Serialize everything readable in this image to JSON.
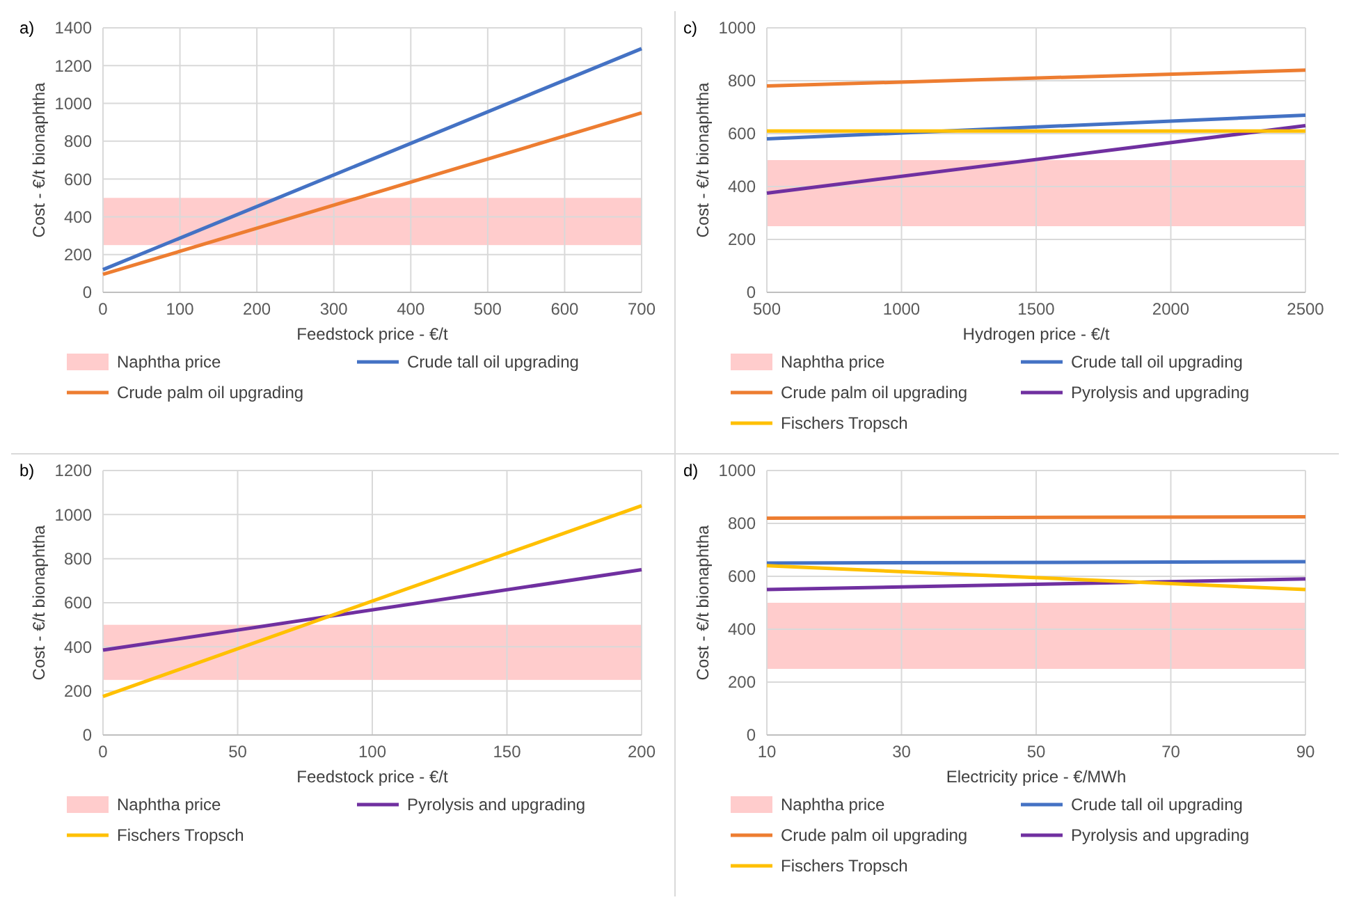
{
  "chart_data": [
    {
      "type": "line",
      "annotations": [
        "a)"
      ],
      "xlabel": "Feedstock price - €/t",
      "ylabel": "Cost - €/t bionaphtha",
      "xlim": [
        0,
        700
      ],
      "xticks": [
        0,
        100,
        200,
        300,
        400,
        500,
        600,
        700
      ],
      "ylim": [
        0,
        1400
      ],
      "yticks": [
        0,
        200,
        400,
        600,
        800,
        1000,
        1200,
        1400
      ],
      "grid": true,
      "legend": "bottom",
      "bands": [
        {
          "axis": "y",
          "from": 250,
          "to": 500,
          "label": "Naphtha price",
          "color": "#ffcccc"
        }
      ],
      "x": [
        0,
        700
      ],
      "series": [
        {
          "name": "Crude tall oil upgrading",
          "color": "#4472c4",
          "values": [
            120,
            1290
          ]
        },
        {
          "name": "Crude palm oil upgrading",
          "color": "#ed7d31",
          "values": [
            95,
            950
          ]
        }
      ]
    },
    {
      "type": "line",
      "annotations": [
        "c)"
      ],
      "xlabel": "Hydrogen price - €/t",
      "ylabel": "Cost - €/t bionaphtha",
      "xlim": [
        500,
        2500
      ],
      "xticks": [
        500,
        1000,
        1500,
        2000,
        2500
      ],
      "ylim": [
        0,
        1000
      ],
      "yticks": [
        0,
        200,
        400,
        600,
        800,
        1000
      ],
      "grid": true,
      "legend": "bottom",
      "bands": [
        {
          "axis": "y",
          "from": 250,
          "to": 500,
          "label": "Naphtha price",
          "color": "#ffcccc"
        }
      ],
      "x": [
        500,
        2500
      ],
      "series": [
        {
          "name": "Crude tall oil upgrading",
          "color": "#4472c4",
          "values": [
            580,
            670
          ]
        },
        {
          "name": "Crude palm oil upgrading",
          "color": "#ed7d31",
          "values": [
            780,
            840
          ]
        },
        {
          "name": "Pyrolysis and upgrading",
          "color": "#7030a0",
          "values": [
            375,
            630
          ]
        },
        {
          "name": "Fischers Tropsch",
          "color": "#ffc000",
          "values": [
            610,
            610
          ]
        }
      ]
    },
    {
      "type": "line",
      "annotations": [
        "b)"
      ],
      "xlabel": "Feedstock price - €/t",
      "ylabel": "Cost - €/t bionaphtha",
      "xlim": [
        0,
        200
      ],
      "xticks": [
        0,
        50,
        100,
        150,
        200
      ],
      "ylim": [
        0,
        1200
      ],
      "yticks": [
        0,
        200,
        400,
        600,
        800,
        1000,
        1200
      ],
      "grid": true,
      "legend": "bottom",
      "bands": [
        {
          "axis": "y",
          "from": 250,
          "to": 500,
          "label": "Naphtha price",
          "color": "#ffcccc"
        }
      ],
      "x": [
        0,
        200
      ],
      "series": [
        {
          "name": "Pyrolysis and upgrading",
          "color": "#7030a0",
          "values": [
            385,
            750
          ]
        },
        {
          "name": "Fischers Tropsch",
          "color": "#ffc000",
          "values": [
            175,
            1040
          ]
        }
      ]
    },
    {
      "type": "line",
      "annotations": [
        "d)"
      ],
      "xlabel": "Electricity price - €/MWh",
      "ylabel": "Cost - €/t bionaphtha",
      "xlim": [
        10,
        90
      ],
      "xticks": [
        10,
        30,
        50,
        70,
        90
      ],
      "ylim": [
        0,
        1000
      ],
      "yticks": [
        0,
        200,
        400,
        600,
        800,
        1000
      ],
      "grid": true,
      "legend": "bottom",
      "bands": [
        {
          "axis": "y",
          "from": 250,
          "to": 500,
          "label": "Naphtha price",
          "color": "#ffcccc"
        }
      ],
      "x": [
        10,
        90
      ],
      "series": [
        {
          "name": "Crude tall oil upgrading",
          "color": "#4472c4",
          "values": [
            650,
            655
          ]
        },
        {
          "name": "Crude palm oil upgrading",
          "color": "#ed7d31",
          "values": [
            820,
            825
          ]
        },
        {
          "name": "Pyrolysis and upgrading",
          "color": "#7030a0",
          "values": [
            550,
            590
          ]
        },
        {
          "name": "Fischers Tropsch",
          "color": "#ffc000",
          "values": [
            640,
            550
          ]
        }
      ]
    }
  ]
}
